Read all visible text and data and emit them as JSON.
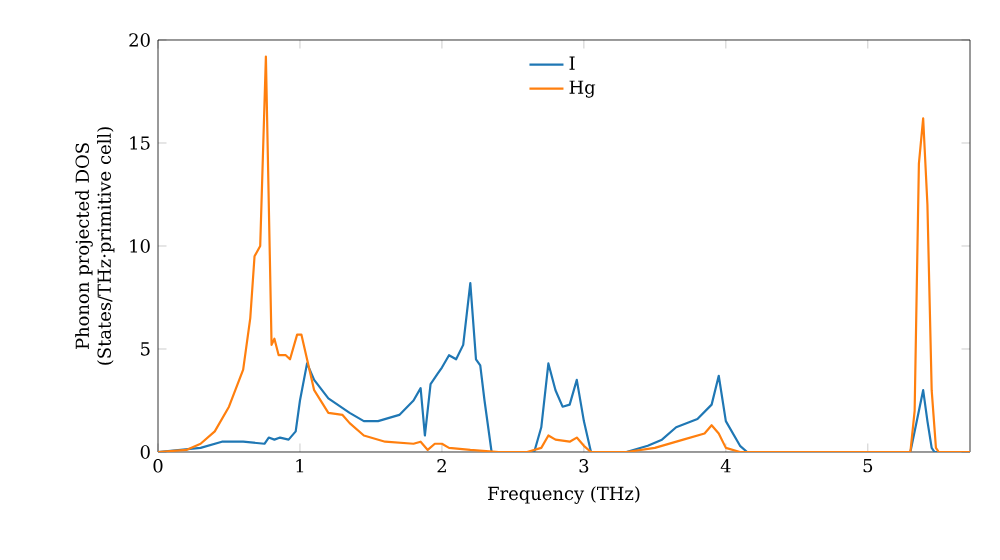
{
  "chart_data": {
    "type": "line",
    "xlabel": "Frequency (THz)",
    "ylabel": "Phonon projected DOS (States/THz·primitive cell)",
    "xlim": [
      0,
      5.72
    ],
    "ylim": [
      0,
      20
    ],
    "xticks": [
      0,
      1,
      2,
      3,
      4,
      5
    ],
    "yticks": [
      0,
      5,
      10,
      15,
      20
    ],
    "grid": false,
    "legend": "top",
    "marker": "none",
    "line_style": "solid",
    "series": [
      {
        "name": "I",
        "color": "#1f77b4",
        "x": [
          0,
          0.3,
          0.45,
          0.6,
          0.75,
          0.78,
          0.82,
          0.86,
          0.92,
          0.97,
          1.0,
          1.05,
          1.1,
          1.2,
          1.35,
          1.45,
          1.55,
          1.7,
          1.8,
          1.85,
          1.88,
          1.92,
          1.97,
          2.0,
          2.05,
          2.1,
          2.15,
          2.2,
          2.24,
          2.27,
          2.3,
          2.35,
          2.65,
          2.7,
          2.75,
          2.8,
          2.85,
          2.9,
          2.95,
          3.0,
          3.05,
          3.3,
          3.45,
          3.55,
          3.65,
          3.8,
          3.9,
          3.95,
          4.0,
          4.1,
          4.15,
          5.3,
          5.36,
          5.39,
          5.42,
          5.45,
          5.47,
          5.72
        ],
        "values": [
          0,
          0.2,
          0.5,
          0.5,
          0.4,
          0.7,
          0.6,
          0.7,
          0.6,
          1,
          2.5,
          4.3,
          3.5,
          2.6,
          1.9,
          1.5,
          1.5,
          1.8,
          2.5,
          3.1,
          0.8,
          3.3,
          3.8,
          4.1,
          4.7,
          4.5,
          5.2,
          8.2,
          4.5,
          4.2,
          2.5,
          0,
          0,
          1.2,
          4.3,
          3.0,
          2.2,
          2.3,
          3.5,
          1.5,
          0,
          0,
          0.3,
          0.6,
          1.2,
          1.6,
          2.3,
          3.7,
          1.5,
          0.3,
          0,
          0,
          2,
          3.0,
          1.5,
          0.2,
          0,
          0
        ]
      },
      {
        "name": "Hg",
        "color": "#ff7f0e",
        "x": [
          0,
          0.2,
          0.3,
          0.4,
          0.5,
          0.6,
          0.65,
          0.68,
          0.72,
          0.76,
          0.8,
          0.82,
          0.85,
          0.9,
          0.93,
          0.98,
          1.01,
          1.05,
          1.1,
          1.2,
          1.3,
          1.35,
          1.45,
          1.6,
          1.8,
          1.85,
          1.9,
          1.95,
          2.0,
          2.05,
          2.2,
          2.4,
          2.6,
          2.7,
          2.75,
          2.8,
          2.9,
          2.95,
          3.0,
          3.05,
          3.3,
          3.5,
          3.7,
          3.85,
          3.9,
          3.95,
          4.0,
          4.1,
          5.3,
          5.33,
          5.36,
          5.39,
          5.42,
          5.45,
          5.48,
          5.5,
          5.72
        ],
        "values": [
          0,
          0.1,
          0.4,
          1.0,
          2.2,
          4,
          6.5,
          9.5,
          10,
          19.2,
          5.2,
          5.5,
          4.7,
          4.7,
          4.5,
          5.7,
          5.7,
          4.5,
          3,
          1.9,
          1.8,
          1.4,
          0.8,
          0.5,
          0.4,
          0.5,
          0.1,
          0.4,
          0.4,
          0.2,
          0.1,
          0,
          0,
          0.2,
          0.8,
          0.6,
          0.5,
          0.7,
          0.3,
          0,
          0,
          0.2,
          0.6,
          0.9,
          1.3,
          0.9,
          0.2,
          0,
          0,
          2,
          14,
          16.2,
          12,
          3,
          0.2,
          0,
          0
        ]
      }
    ]
  }
}
